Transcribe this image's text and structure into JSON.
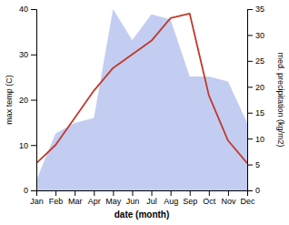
{
  "chart_data": {
    "type": "line",
    "xlabel": "date (month)",
    "ylabel": "max temp (C)",
    "y2label": "med. precipitation (kg/m2)",
    "categories": [
      "Jan",
      "Feb",
      "Mar",
      "Apr",
      "May",
      "Jun",
      "Jul",
      "Aug",
      "Sep",
      "Oct",
      "Nov",
      "Dec"
    ],
    "series": [
      {
        "type": "area",
        "color": "#b8c4ee",
        "axis": "y2",
        "values": [
          2,
          11,
          13,
          14,
          35,
          29,
          34,
          33,
          22,
          22,
          21,
          13
        ]
      },
      {
        "type": "line",
        "color": "#c0392b",
        "values": [
          6,
          10,
          16,
          22,
          27,
          30,
          33,
          38,
          39,
          21,
          11,
          6
        ]
      }
    ],
    "ylim": [
      0,
      40
    ],
    "yticks": [
      0,
      10,
      20,
      30,
      40
    ],
    "y2lim": [
      0,
      35
    ],
    "y2ticks": [
      0,
      5,
      10,
      15,
      20,
      25,
      30,
      35
    ],
    "grid": false
  }
}
